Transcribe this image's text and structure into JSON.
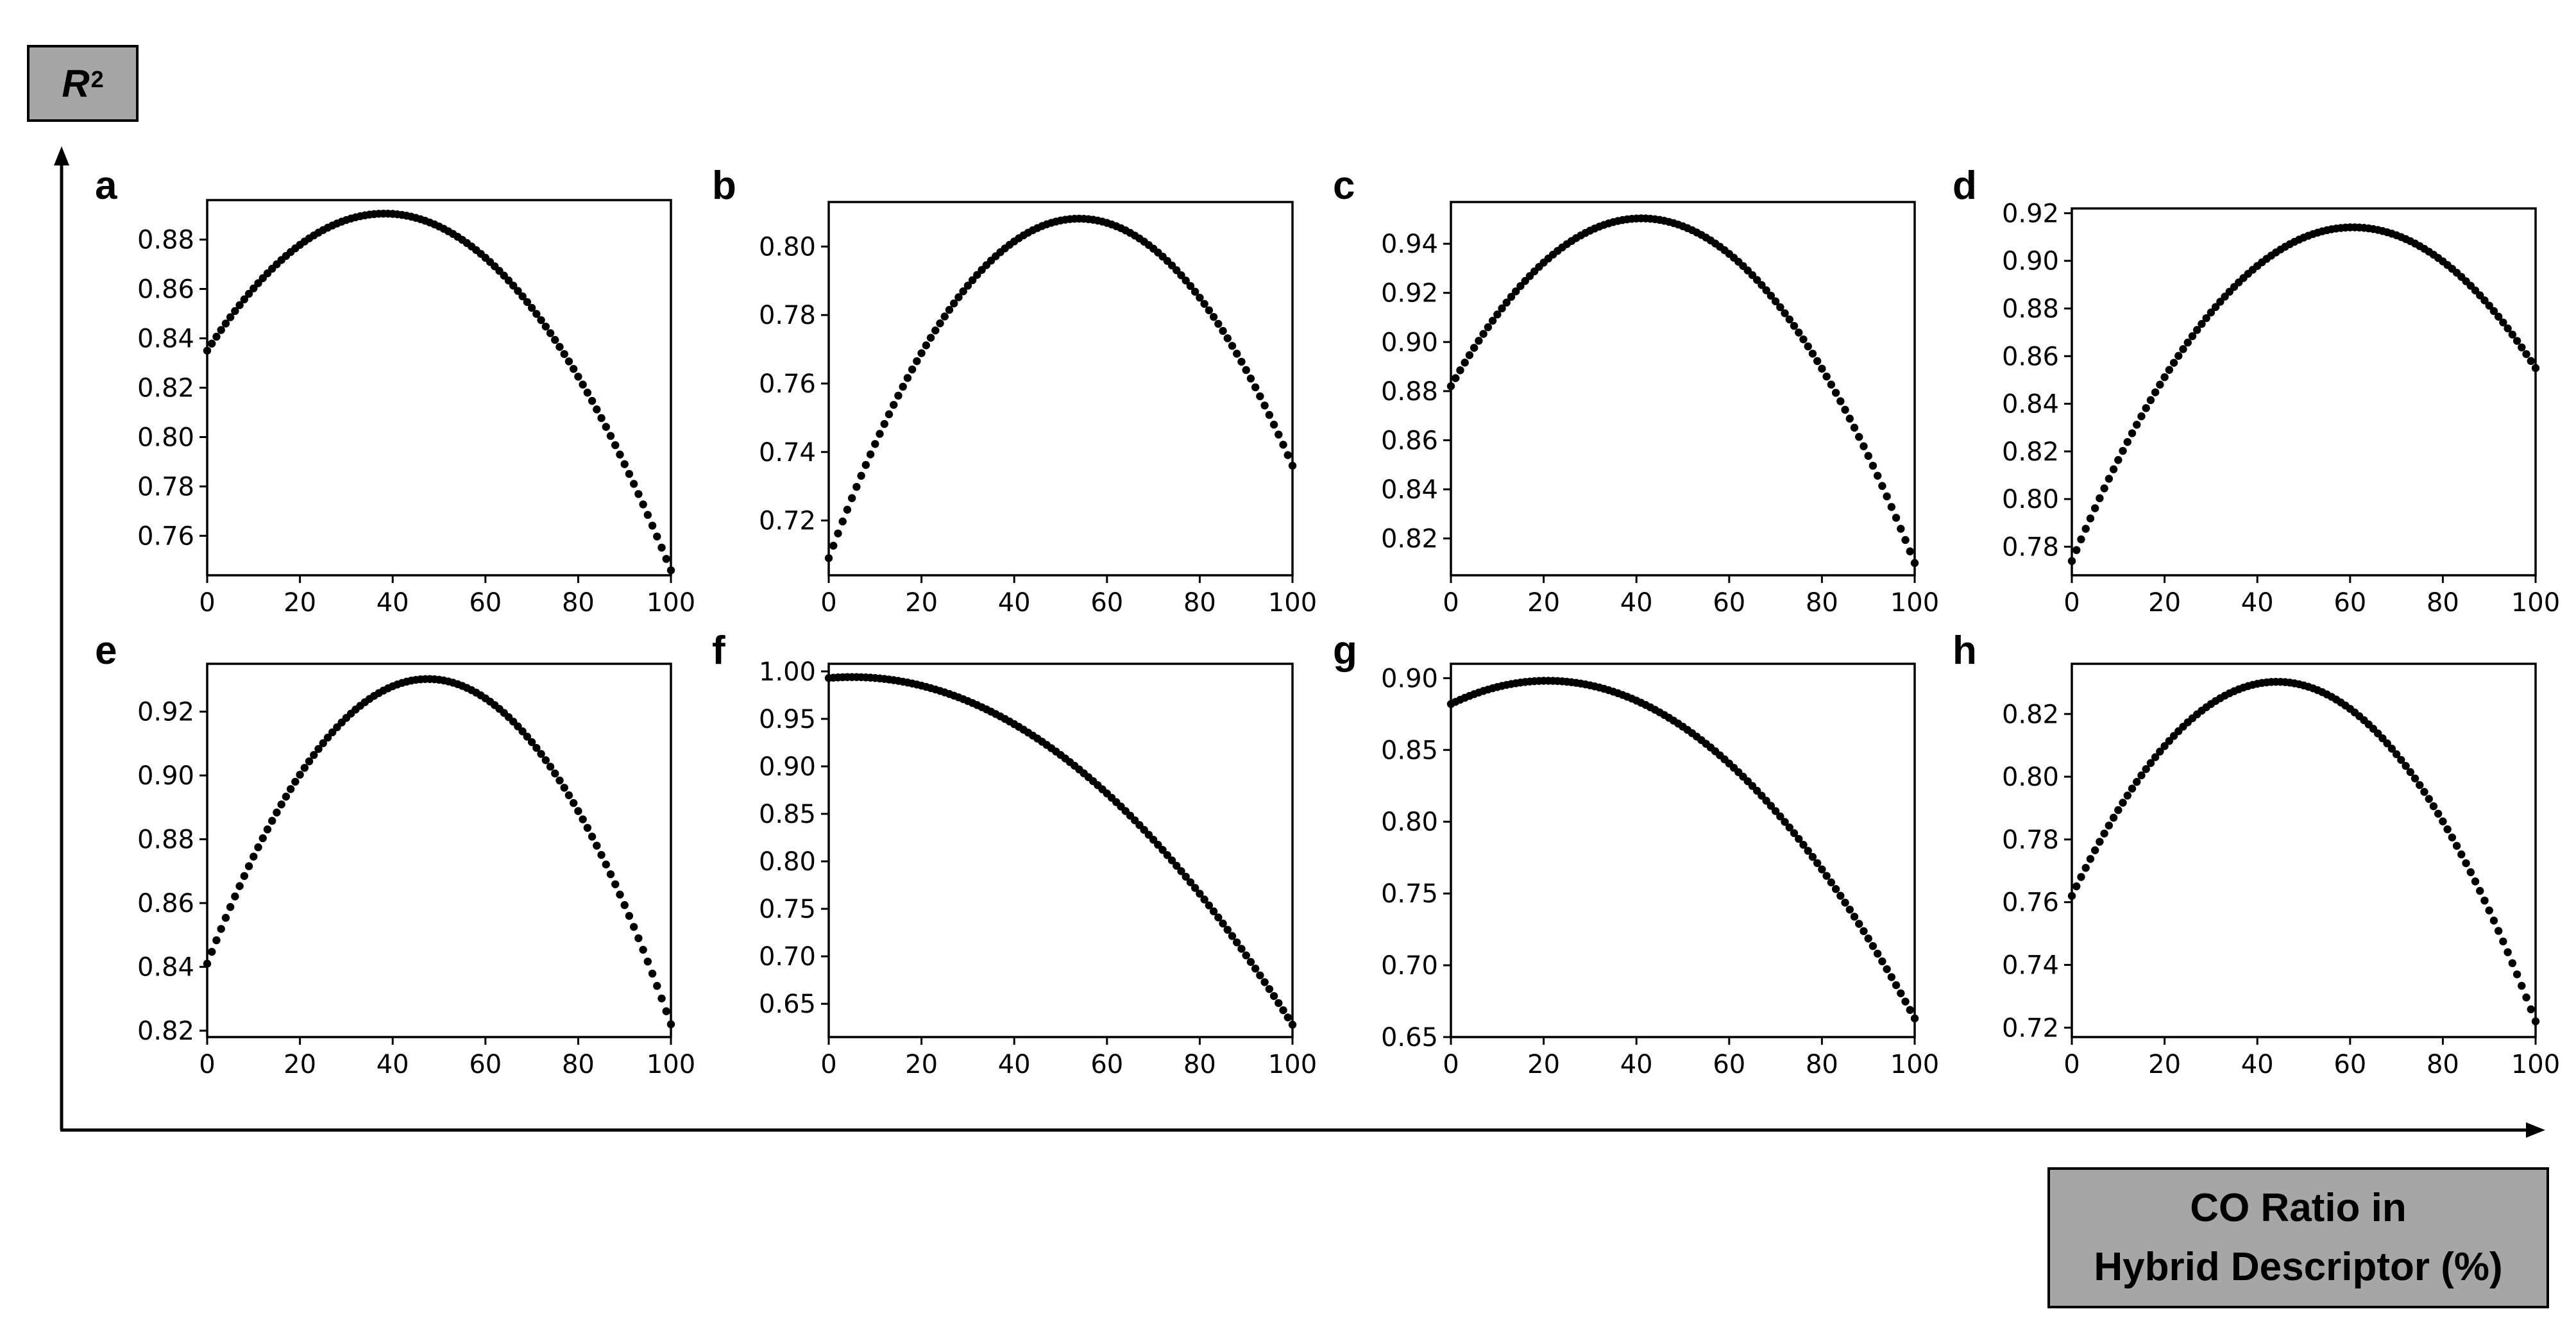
{
  "figure": {
    "y_axis_label": "R",
    "y_axis_label_sup": "2",
    "x_axis_label_line1": "CO Ratio in",
    "x_axis_label_line2": "Hybrid Descriptor (%)"
  },
  "chart_data": [
    {
      "type": "scatter",
      "panel": "a",
      "xlim": [
        0,
        100
      ],
      "ylim": [
        0.744,
        0.896
      ],
      "xticks": [
        0,
        20,
        40,
        60,
        80,
        100
      ],
      "yticks": [
        0.76,
        0.78,
        0.8,
        0.82,
        0.84,
        0.86,
        0.88
      ],
      "ytick_labels": [
        "0.76",
        "0.78",
        "0.80",
        "0.82",
        "0.84",
        "0.86",
        "0.88"
      ],
      "curve": {
        "x": [
          0,
          42,
          100
        ],
        "y": [
          0.835,
          0.89,
          0.746
        ],
        "n_points": 101
      }
    },
    {
      "type": "scatter",
      "panel": "b",
      "xlim": [
        0,
        100
      ],
      "ylim": [
        0.704,
        0.813
      ],
      "xticks": [
        0,
        20,
        40,
        60,
        80,
        100
      ],
      "yticks": [
        0.72,
        0.74,
        0.76,
        0.78,
        0.8
      ],
      "ytick_labels": [
        "0.72",
        "0.74",
        "0.76",
        "0.78",
        "0.80"
      ],
      "curve": {
        "x": [
          0,
          56,
          100
        ],
        "y": [
          0.709,
          0.808,
          0.736
        ],
        "n_points": 101
      }
    },
    {
      "type": "scatter",
      "panel": "c",
      "xlim": [
        0,
        100
      ],
      "ylim": [
        0.805,
        0.957
      ],
      "xticks": [
        0,
        20,
        40,
        60,
        80,
        100
      ],
      "yticks": [
        0.82,
        0.84,
        0.86,
        0.88,
        0.9,
        0.92,
        0.94
      ],
      "ytick_labels": [
        "0.82",
        "0.84",
        "0.86",
        "0.88",
        "0.90",
        "0.92",
        "0.94"
      ],
      "curve": {
        "x": [
          0,
          44,
          100
        ],
        "y": [
          0.882,
          0.95,
          0.81
        ],
        "n_points": 101
      }
    },
    {
      "type": "scatter",
      "panel": "d",
      "xlim": [
        0,
        100
      ],
      "ylim": [
        0.768,
        0.922
      ],
      "xticks": [
        0,
        20,
        40,
        60,
        80,
        100
      ],
      "yticks": [
        0.78,
        0.8,
        0.82,
        0.84,
        0.86,
        0.88,
        0.9,
        0.92
      ],
      "ytick_labels": [
        "0.78",
        "0.80",
        "0.82",
        "0.84",
        "0.86",
        "0.88",
        "0.90",
        "0.92"
      ],
      "curve": {
        "x": [
          0,
          62,
          100
        ],
        "y": [
          0.774,
          0.914,
          0.855
        ],
        "n_points": 101
      }
    },
    {
      "type": "scatter",
      "panel": "e",
      "xlim": [
        0,
        100
      ],
      "ylim": [
        0.818,
        0.935
      ],
      "xticks": [
        0,
        20,
        40,
        60,
        80,
        100
      ],
      "yticks": [
        0.82,
        0.84,
        0.86,
        0.88,
        0.9,
        0.92
      ],
      "ytick_labels": [
        "0.82",
        "0.84",
        "0.86",
        "0.88",
        "0.90",
        "0.92"
      ],
      "curve": {
        "x": [
          0,
          50,
          100
        ],
        "y": [
          0.841,
          0.93,
          0.822
        ],
        "n_points": 101
      }
    },
    {
      "type": "scatter",
      "panel": "f",
      "xlim": [
        0,
        100
      ],
      "ylim": [
        0.615,
        1.008
      ],
      "xticks": [
        0,
        20,
        40,
        60,
        80,
        100
      ],
      "yticks": [
        0.65,
        0.7,
        0.75,
        0.8,
        0.85,
        0.9,
        0.95,
        1.0
      ],
      "ytick_labels": [
        "0.65",
        "0.70",
        "0.75",
        "0.80",
        "0.85",
        "0.90",
        "0.95",
        "1.00"
      ],
      "curve": {
        "x": [
          0,
          6,
          100
        ],
        "y": [
          0.993,
          0.994,
          0.628
        ],
        "n_points": 101
      }
    },
    {
      "type": "scatter",
      "panel": "g",
      "xlim": [
        0,
        100
      ],
      "ylim": [
        0.65,
        0.91
      ],
      "xticks": [
        0,
        20,
        40,
        60,
        80,
        100
      ],
      "yticks": [
        0.65,
        0.7,
        0.75,
        0.8,
        0.85,
        0.9
      ],
      "ytick_labels": [
        "0.65",
        "0.70",
        "0.75",
        "0.80",
        "0.85",
        "0.90"
      ],
      "curve": {
        "x": [
          0,
          23,
          100
        ],
        "y": [
          0.882,
          0.898,
          0.663
        ],
        "n_points": 101
      }
    },
    {
      "type": "scatter",
      "panel": "h",
      "xlim": [
        0,
        100
      ],
      "ylim": [
        0.717,
        0.836
      ],
      "xticks": [
        0,
        20,
        40,
        60,
        80,
        100
      ],
      "yticks": [
        0.72,
        0.74,
        0.76,
        0.78,
        0.8,
        0.82
      ],
      "ytick_labels": [
        "0.72",
        "0.74",
        "0.76",
        "0.78",
        "0.80",
        "0.82"
      ],
      "curve": {
        "x": [
          0,
          47,
          100
        ],
        "y": [
          0.762,
          0.83,
          0.722
        ],
        "n_points": 101
      }
    }
  ]
}
